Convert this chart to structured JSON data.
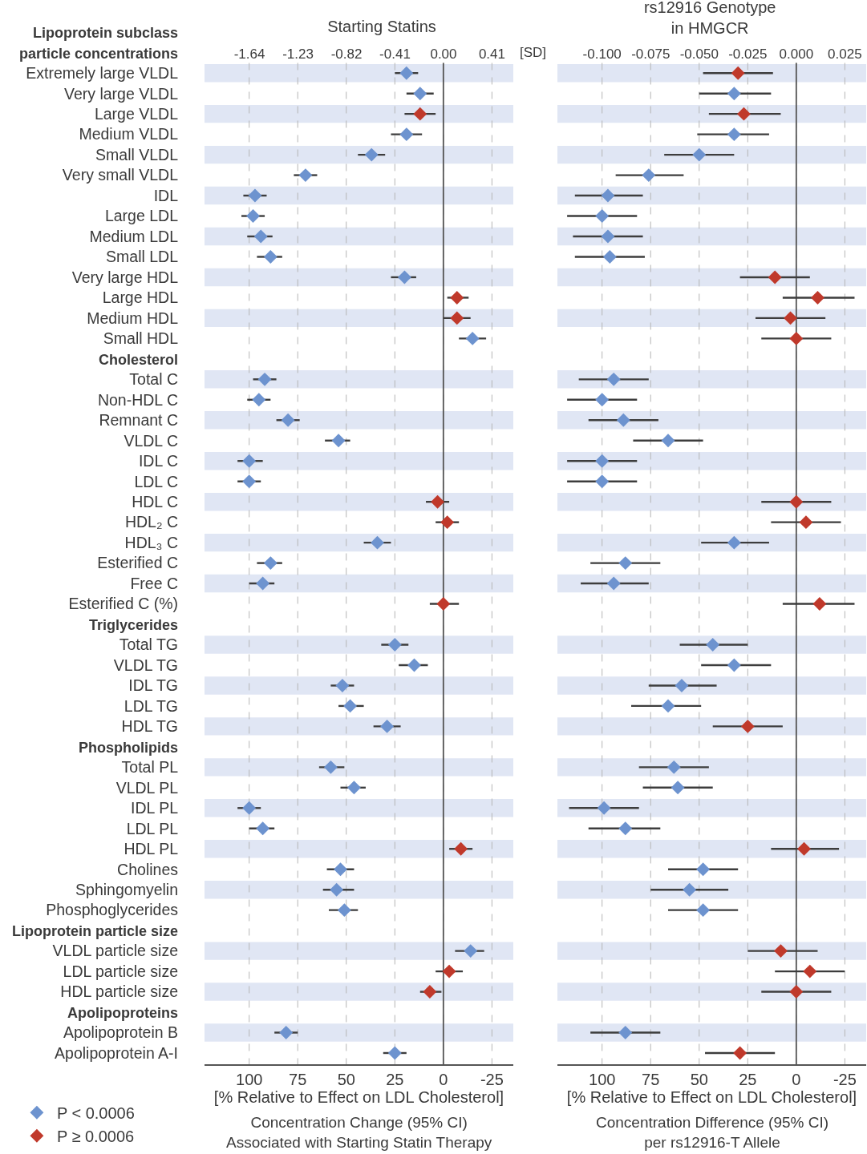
{
  "chart_data": [
    {
      "type": "scatter",
      "orientation": "horizontal",
      "title": "Starting Statins",
      "xlabel": "[% Relative to Effect on LDL Cholesterol]",
      "x2label": "[SD]",
      "annotations": [
        "Concentration Change (95% CI)\nAssociated with Starting Statin Therapy"
      ],
      "categories": [
        "Lipoprotein subclass\nparticle concentrations",
        "Extremely large VLDL",
        "Very large VLDL",
        "Large VLDL",
        "Medium VLDL",
        "Small VLDL",
        "Very small VLDL",
        "IDL",
        "Large LDL",
        "Medium LDL",
        "Small LDL",
        "Very large HDL",
        "Large HDL",
        "Medium HDL",
        "Small HDL",
        "Cholesterol",
        "Total C",
        "Non-HDL C",
        "Remnant C",
        "VLDL C",
        "IDL C",
        "LDL C",
        "HDL C",
        "HDL₂ C",
        "HDL₃ C",
        "Esterified C",
        "Free C",
        "Esterified C (%)",
        "Triglycerides",
        "Total TG",
        "VLDL TG",
        "IDL TG",
        "LDL TG",
        "HDL TG",
        "Phospholipids",
        "Total PL",
        "VLDL PL",
        "IDL PL",
        "LDL PL",
        "HDL PL",
        "Cholines",
        "Sphingomyelin",
        "Phosphoglycerides",
        "Lipoprotein particle size",
        "VLDL particle size",
        "LDL particle size",
        "HDL particle size",
        "Apolipoproteins",
        "Apolipoprotein B",
        "Apolipoprotein A-I"
      ],
      "series": [
        {
          "name": "P < 0.0006",
          "color": "#6d93cf",
          "values": [
            null,
            19,
            12,
            null,
            19,
            37,
            71,
            97,
            98,
            94,
            89,
            20,
            null,
            null,
            -15,
            null,
            92,
            95,
            80,
            54,
            100,
            100,
            null,
            null,
            34,
            89,
            93,
            null,
            null,
            25,
            15,
            52,
            48,
            29,
            null,
            58,
            46,
            100,
            93,
            null,
            53,
            55,
            51,
            null,
            -14,
            null,
            null,
            null,
            81,
            25
          ],
          "errors": [
            null,
            [
              13,
              25
            ],
            [
              5,
              19
            ],
            null,
            [
              11,
              27
            ],
            [
              30,
              44
            ],
            [
              65,
              77
            ],
            [
              91,
              103
            ],
            [
              92,
              104
            ],
            [
              88,
              101
            ],
            [
              83,
              96
            ],
            [
              14,
              27
            ],
            null,
            null,
            [
              -22,
              -8
            ],
            null,
            [
              86,
              98
            ],
            [
              89,
              101
            ],
            [
              74,
              86
            ],
            [
              48,
              61
            ],
            [
              93,
              106
            ],
            [
              94,
              106
            ],
            null,
            null,
            [
              27,
              41
            ],
            [
              83,
              96
            ],
            [
              87,
              100
            ],
            null,
            null,
            [
              18,
              32
            ],
            [
              8,
              23
            ],
            [
              46,
              58
            ],
            [
              41,
              54
            ],
            [
              22,
              36
            ],
            null,
            [
              51,
              64
            ],
            [
              40,
              53
            ],
            [
              94,
              106
            ],
            [
              87,
              100
            ],
            null,
            [
              46,
              60
            ],
            [
              46,
              62
            ],
            [
              44,
              59
            ],
            null,
            [
              -21,
              -6
            ],
            null,
            null,
            null,
            [
              75,
              87
            ],
            [
              19,
              31
            ]
          ]
        },
        {
          "name": "P ≥ 0.0006",
          "color": "#c0392b",
          "values": [
            null,
            null,
            null,
            12,
            null,
            null,
            null,
            null,
            null,
            null,
            null,
            null,
            -7,
            -7,
            null,
            null,
            null,
            null,
            null,
            null,
            null,
            null,
            3,
            -2,
            null,
            null,
            null,
            0,
            null,
            null,
            null,
            null,
            null,
            null,
            null,
            null,
            null,
            null,
            null,
            -9,
            null,
            null,
            null,
            null,
            null,
            -3,
            7,
            null,
            null,
            null
          ],
          "errors": [
            null,
            null,
            null,
            [
              4,
              20
            ],
            null,
            null,
            null,
            null,
            null,
            null,
            null,
            null,
            [
              -13,
              -2
            ],
            [
              -14,
              0
            ],
            null,
            null,
            null,
            null,
            null,
            null,
            null,
            null,
            [
              -3,
              9
            ],
            [
              -8,
              4
            ],
            null,
            null,
            null,
            [
              -8,
              7
            ],
            null,
            null,
            null,
            null,
            null,
            null,
            null,
            null,
            null,
            null,
            null,
            [
              -15,
              -3
            ],
            null,
            null,
            null,
            null,
            null,
            [
              -10,
              4
            ],
            [
              1,
              12
            ],
            null,
            null,
            null
          ]
        }
      ],
      "xlim": [
        123,
        -36
      ],
      "xticks": [
        100,
        75,
        50,
        25,
        0,
        -25
      ],
      "x2lim": [
        -2.02,
        0.59
      ],
      "x2ticks": [
        -1.64,
        -1.23,
        -0.82,
        -0.41,
        {
          "value": 0,
          "label": "0.00"
        },
        0.41
      ],
      "grid": "x",
      "ref_lines": [
        {
          "axis": "x",
          "value": 0,
          "color": "#555555"
        }
      ],
      "marker": "diamond",
      "legend": "bottom left"
    },
    {
      "type": "scatter",
      "orientation": "horizontal",
      "title": "rs12916 Genotype\nin HMGCR",
      "xlabel": "[% Relative to Effect on LDL Cholesterol]",
      "annotations": [
        "Concentration Difference (95% CI)\nper rs12916-T Allele"
      ],
      "categories": [
        null,
        null,
        null,
        null,
        null,
        null,
        null,
        null,
        null,
        null,
        null,
        null,
        null,
        null,
        null,
        null,
        null,
        null,
        null,
        null,
        null,
        null,
        null,
        null,
        null,
        null,
        null,
        null,
        null,
        null,
        null,
        null,
        null,
        null,
        null,
        null,
        null,
        null,
        null,
        null,
        null,
        null,
        null,
        null,
        null,
        null,
        null,
        null,
        null,
        null
      ],
      "series": [
        {
          "color": "#6d93cf",
          "values": [
            null,
            null,
            32,
            null,
            32,
            50,
            76,
            97,
            100,
            97,
            96,
            null,
            null,
            null,
            null,
            null,
            94,
            100,
            89,
            66,
            100,
            100,
            null,
            null,
            32,
            88,
            94,
            null,
            null,
            43,
            32,
            59,
            66,
            null,
            null,
            63,
            61,
            99,
            88,
            null,
            48,
            55,
            48,
            null,
            null,
            null,
            null,
            null,
            88,
            null
          ],
          "errors": [
            null,
            null,
            [
              13,
              50
            ],
            null,
            [
              14,
              51
            ],
            [
              32,
              68
            ],
            [
              58,
              93
            ],
            [
              79,
              114
            ],
            [
              82,
              118
            ],
            [
              79,
              115
            ],
            [
              78,
              114
            ],
            null,
            null,
            null,
            null,
            null,
            [
              76,
              112
            ],
            [
              82,
              118
            ],
            [
              71,
              107
            ],
            [
              48,
              84
            ],
            [
              82,
              118
            ],
            [
              82,
              118
            ],
            null,
            null,
            [
              14,
              49
            ],
            [
              70,
              106
            ],
            [
              76,
              111
            ],
            null,
            null,
            [
              25,
              60
            ],
            [
              13,
              49
            ],
            [
              41,
              76
            ],
            [
              49,
              85
            ],
            null,
            null,
            [
              45,
              81
            ],
            [
              43,
              79
            ],
            [
              81,
              117
            ],
            [
              70,
              107
            ],
            null,
            [
              30,
              66
            ],
            [
              35,
              75
            ],
            [
              30,
              66
            ],
            null,
            null,
            null,
            null,
            null,
            [
              70,
              106
            ],
            null
          ]
        },
        {
          "color": "#c0392b",
          "values": [
            null,
            30,
            null,
            27,
            null,
            null,
            null,
            null,
            null,
            null,
            null,
            11,
            -11,
            3,
            0,
            null,
            null,
            null,
            null,
            null,
            null,
            null,
            0,
            -5,
            null,
            null,
            null,
            -12,
            null,
            null,
            null,
            null,
            null,
            25,
            null,
            null,
            null,
            null,
            null,
            -4,
            null,
            null,
            null,
            null,
            8,
            -7,
            0,
            null,
            null,
            29
          ],
          "errors": [
            null,
            [
              12,
              48
            ],
            null,
            [
              8,
              45
            ],
            null,
            null,
            null,
            null,
            null,
            null,
            null,
            [
              -7,
              29
            ],
            [
              -30,
              7
            ],
            [
              -15,
              21
            ],
            [
              -18,
              18
            ],
            null,
            null,
            null,
            null,
            null,
            null,
            null,
            [
              -18,
              18
            ],
            [
              -23,
              13
            ],
            null,
            null,
            null,
            [
              -30,
              7
            ],
            null,
            null,
            null,
            null,
            null,
            [
              7,
              43
            ],
            null,
            null,
            null,
            null,
            null,
            [
              -22,
              13
            ],
            null,
            null,
            null,
            null,
            [
              -11,
              25
            ],
            [
              -25,
              11
            ],
            [
              -18,
              18
            ],
            null,
            null,
            [
              11,
              47
            ]
          ]
        }
      ],
      "xlim": [
        123,
        -36
      ],
      "xticks": [
        100,
        75,
        50,
        25,
        0,
        -25
      ],
      "x2lim": [
        -0.123,
        0.036
      ],
      "x2ticks": [
        {
          "value": -0.1,
          "label": "-0.100"
        },
        -0.075,
        {
          "value": -0.05,
          "label": "-0.050"
        },
        -0.025,
        {
          "value": 0,
          "label": "0.000"
        },
        0.025
      ],
      "grid": "x",
      "ref_lines": [
        {
          "axis": "x",
          "value": 0,
          "color": "#555555"
        }
      ],
      "marker": "diamond"
    }
  ]
}
